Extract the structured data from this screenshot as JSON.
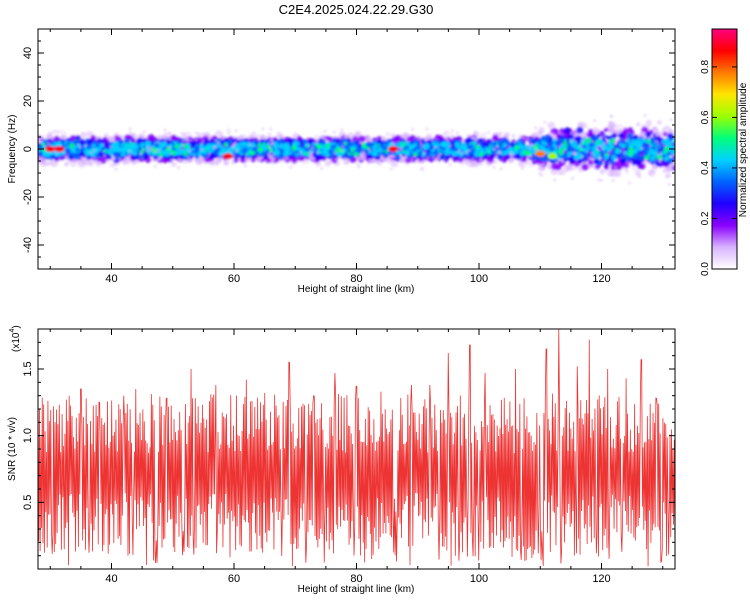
{
  "title": "C2E4.2025.024.22.29.G30",
  "chart_data": [
    {
      "type": "heatmap",
      "xlabel": "Height of straight line (km)",
      "ylabel": "Frequency (Hz)",
      "xlim": [
        28,
        132
      ],
      "ylim": [
        -50,
        50
      ],
      "xticks": [
        40,
        60,
        80,
        100,
        120
      ],
      "yticks": [
        -40,
        -20,
        0,
        20,
        40
      ],
      "colorbar": {
        "label": "Normalized spectral amplitude",
        "range": [
          0,
          0.95
        ],
        "ticks": [
          "0.0",
          "0.2",
          "0.4",
          "0.6",
          "0.8"
        ],
        "tick_values": [
          0,
          0.2,
          0.4,
          0.6,
          0.8
        ],
        "colormap": [
          "#ffffff",
          "#d8b4ff",
          "#8a00ff",
          "#1e00ff",
          "#0064ff",
          "#00d2ff",
          "#00ff7a",
          "#9bff00",
          "#ffe600",
          "#ff7a00",
          "#ff0000",
          "#ff007f"
        ]
      },
      "ridge": {
        "center_hz": 0,
        "band_halfwidth_hz": [
          {
            "x": 28,
            "hz": 5
          },
          {
            "x": 108,
            "hz": 5
          },
          {
            "x": 112,
            "hz": 8
          },
          {
            "x": 132,
            "hz": 9
          }
        ],
        "hotspots": [
          {
            "x": 30,
            "y": 0,
            "v": 0.9
          },
          {
            "x": 31.5,
            "y": 0,
            "v": 0.9
          },
          {
            "x": 59,
            "y": -3,
            "v": 0.85
          },
          {
            "x": 86,
            "y": 0,
            "v": 0.9
          },
          {
            "x": 110,
            "y": -2,
            "v": 0.75
          },
          {
            "x": 112,
            "y": -3,
            "v": 0.6
          }
        ]
      }
    },
    {
      "type": "line",
      "xlabel": "Height of straight line (km)",
      "ylabel": "SNR (10 * v/v)",
      "multiplier": "(x10",
      "multiplier_exp": "4",
      "multiplier_close": ")",
      "xlim": [
        28,
        132
      ],
      "ylim": [
        0,
        1.8
      ],
      "xticks": [
        40,
        60,
        80,
        100,
        120
      ],
      "yticks": [
        "0.5",
        "1.0",
        "1.5"
      ],
      "ytick_values": [
        0.5,
        1.0,
        1.5
      ],
      "color": "#ee3333",
      "n_points": 900,
      "mean": 0.72,
      "spread": 0.28,
      "peaks": [
        {
          "x": 30.5,
          "y": 1.22
        },
        {
          "x": 35,
          "y": 1.35
        },
        {
          "x": 38,
          "y": 1.25
        },
        {
          "x": 42,
          "y": 1.3
        },
        {
          "x": 44,
          "y": 1.35
        },
        {
          "x": 49,
          "y": 1.28
        },
        {
          "x": 53,
          "y": 1.5
        },
        {
          "x": 57,
          "y": 1.38
        },
        {
          "x": 62,
          "y": 1.42
        },
        {
          "x": 65,
          "y": 1.32
        },
        {
          "x": 69,
          "y": 1.55
        },
        {
          "x": 73,
          "y": 1.3
        },
        {
          "x": 76.5,
          "y": 1.47
        },
        {
          "x": 80,
          "y": 1.37
        },
        {
          "x": 84,
          "y": 1.33
        },
        {
          "x": 89,
          "y": 1.38
        },
        {
          "x": 92,
          "y": 1.38
        },
        {
          "x": 95,
          "y": 1.62
        },
        {
          "x": 98.5,
          "y": 1.68
        },
        {
          "x": 101,
          "y": 1.47
        },
        {
          "x": 106,
          "y": 1.5
        },
        {
          "x": 111,
          "y": 1.65
        },
        {
          "x": 113,
          "y": 1.82
        },
        {
          "x": 116,
          "y": 1.52
        },
        {
          "x": 118,
          "y": 1.72
        },
        {
          "x": 121,
          "y": 1.5
        },
        {
          "x": 124,
          "y": 1.43
        },
        {
          "x": 126.5,
          "y": 1.57
        },
        {
          "x": 129,
          "y": 1.28
        }
      ]
    }
  ]
}
